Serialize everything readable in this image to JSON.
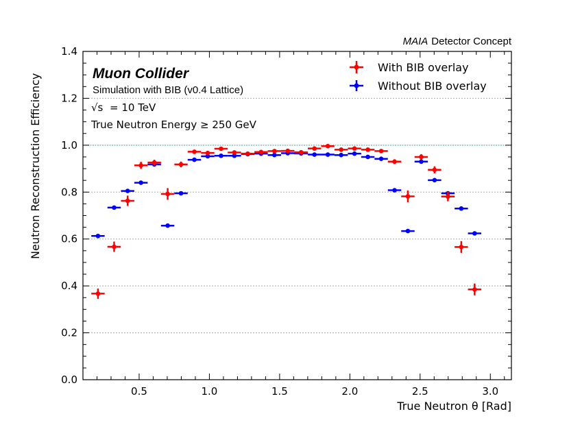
{
  "chart_data": {
    "type": "scatter",
    "header": {
      "experiment": "MAIA",
      "label": "Detector Concept"
    },
    "annotations": {
      "title": "Muon Collider",
      "subtitle": "Simulation with BIB (v0.4 Lattice)",
      "energy_line": "= 10 TeV",
      "energy_symbol": "√s",
      "selection": "True Neutron Energy ≥ 250 GeV"
    },
    "xlabel": "True Neutron θ [Rad]",
    "ylabel": "Neutron Reconstruction Efficiency",
    "xlim": [
      0.1,
      3.15
    ],
    "ylim": [
      0.0,
      1.4
    ],
    "xticks": [
      0.5,
      1.0,
      1.5,
      2.0,
      2.5,
      3.0
    ],
    "xtick_labels": [
      "0.5",
      "1.0",
      "1.5",
      "2.0",
      "2.5",
      "3.0"
    ],
    "yticks": [
      0.0,
      0.2,
      0.4,
      0.6,
      0.8,
      1.0,
      1.2,
      1.4
    ],
    "ytick_labels": [
      "0.0",
      "0.2",
      "0.4",
      "0.6",
      "0.8",
      "1.0",
      "1.2",
      "1.4"
    ],
    "grid": "horizontal dotted",
    "reference_line": 1.0,
    "legend_position": "top-right",
    "bin_half_width": 0.0475,
    "series": [
      {
        "name": "With BIB overlay",
        "color": "#ff0000",
        "x": [
          0.207,
          0.322,
          0.418,
          0.513,
          0.608,
          0.703,
          0.798,
          0.893,
          0.988,
          1.083,
          1.178,
          1.273,
          1.368,
          1.463,
          1.558,
          1.653,
          1.748,
          1.843,
          1.938,
          2.033,
          2.128,
          2.223,
          2.318,
          2.413,
          2.508,
          2.603,
          2.698,
          2.793,
          2.888
        ],
        "y": [
          0.367,
          0.567,
          0.763,
          0.914,
          0.926,
          0.792,
          0.918,
          0.972,
          0.967,
          0.985,
          0.969,
          0.964,
          0.971,
          0.975,
          0.976,
          0.97,
          0.986,
          0.996,
          0.981,
          0.986,
          0.981,
          0.975,
          0.93,
          0.782,
          0.95,
          0.895,
          0.781,
          0.566,
          0.385
        ],
        "yerr": [
          0.022,
          0.022,
          0.022,
          0.015,
          0.012,
          0.025,
          0.012,
          0.008,
          0.008,
          0.007,
          0.007,
          0.007,
          0.007,
          0.006,
          0.006,
          0.006,
          0.006,
          0.006,
          0.006,
          0.006,
          0.007,
          0.007,
          0.01,
          0.025,
          0.012,
          0.015,
          0.02,
          0.025,
          0.025
        ]
      },
      {
        "name": "Without BIB overlay",
        "color": "#0000ff",
        "x": [
          0.207,
          0.322,
          0.418,
          0.513,
          0.608,
          0.703,
          0.798,
          0.893,
          0.988,
          1.083,
          1.178,
          1.273,
          1.368,
          1.463,
          1.558,
          1.653,
          1.748,
          1.843,
          1.938,
          2.033,
          2.128,
          2.223,
          2.318,
          2.413,
          2.508,
          2.603,
          2.698,
          2.793,
          2.888
        ],
        "y": [
          0.613,
          0.734,
          0.805,
          0.84,
          0.918,
          0.657,
          0.795,
          0.938,
          0.953,
          0.955,
          0.955,
          0.962,
          0.964,
          0.958,
          0.966,
          0.965,
          0.96,
          0.96,
          0.958,
          0.964,
          0.95,
          0.942,
          0.808,
          0.634,
          0.93,
          0.851,
          0.795,
          0.73,
          0.624
        ],
        "yerr": [
          0.008,
          0.006,
          0.006,
          0.006,
          0.006,
          0.008,
          0.006,
          0.005,
          0.004,
          0.004,
          0.004,
          0.004,
          0.004,
          0.004,
          0.004,
          0.004,
          0.004,
          0.004,
          0.004,
          0.004,
          0.004,
          0.004,
          0.006,
          0.008,
          0.006,
          0.006,
          0.006,
          0.006,
          0.008
        ]
      }
    ]
  }
}
